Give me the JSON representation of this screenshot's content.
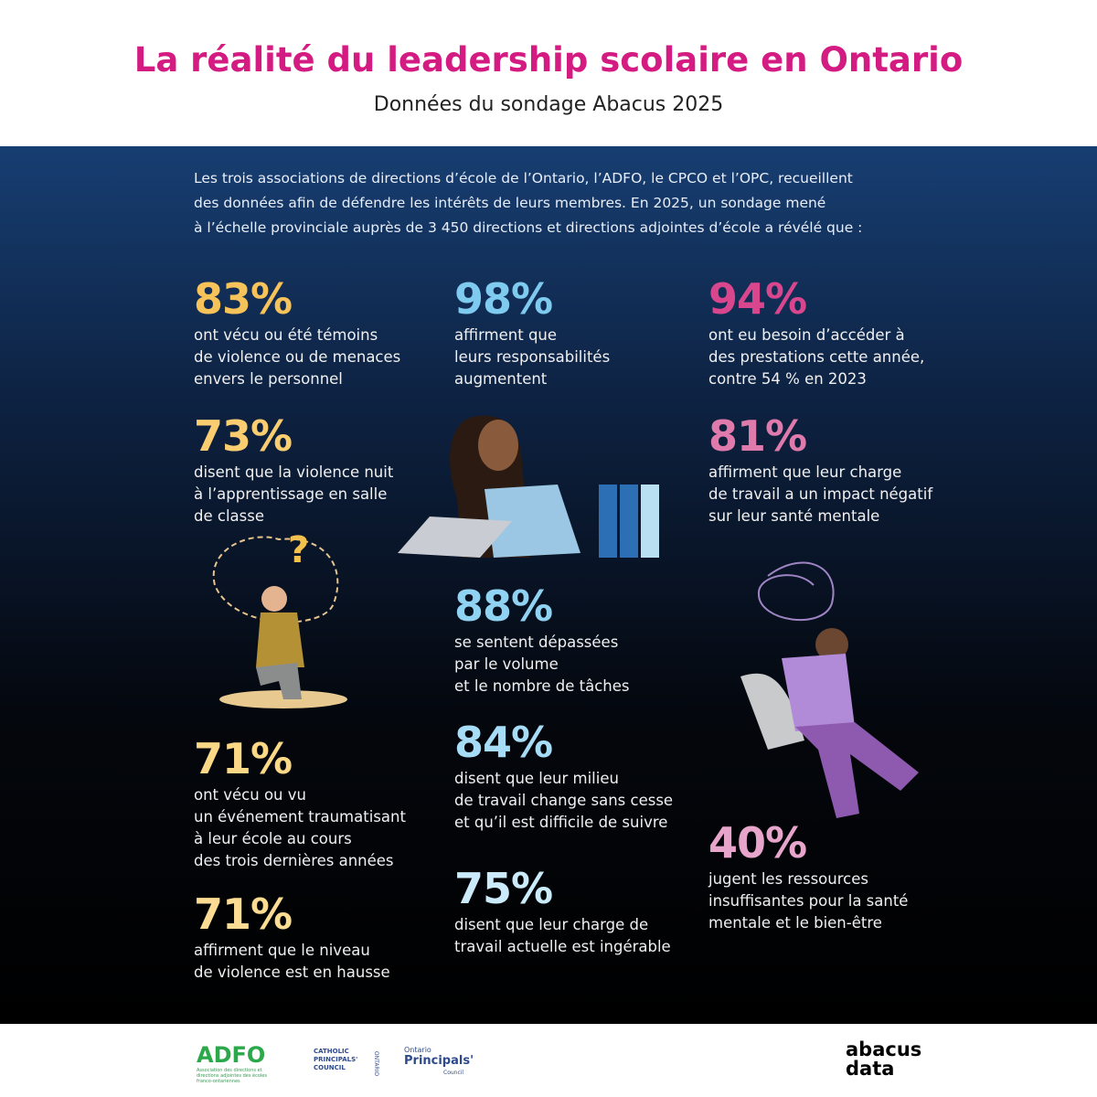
{
  "header": {
    "title": "La réalité du leadership scolaire en Ontario",
    "subtitle": "Données du sondage Abacus 2025"
  },
  "intro": [
    "Les trois associations de directions d’école de l’Ontario, l’ADFO, le CPCO et l’OPC, recueillent",
    "des données afin de défendre les intérêts de leurs membres. En 2025, un sondage mené",
    "à l’échelle provinciale auprès de 3 450 directions et directions adjointes d’école a révélé que :"
  ],
  "stats": [
    {
      "value": "83%",
      "color": "#f6c25a",
      "lines": [
        "ont vécu ou été témoins",
        "de violence ou de menaces",
        "envers le personnel"
      ]
    },
    {
      "value": "73%",
      "color": "#f9cd70",
      "lines": [
        "disent que la violence nuit",
        "à l’apprentissage en salle",
        "de classe"
      ]
    },
    {
      "value": "71%",
      "color": "#fad885",
      "lines": [
        "ont vécu ou vu",
        "un événement traumatisant",
        "à leur école au cours",
        "des trois dernières années"
      ]
    },
    {
      "value": "71%",
      "color": "#fbdc92",
      "lines": [
        "affirment que le niveau",
        "de violence est en hausse"
      ]
    },
    {
      "value": "98%",
      "color": "#7ecbef",
      "lines": [
        "affirment que",
        "leurs responsabilités",
        "augmentent"
      ]
    },
    {
      "value": "88%",
      "color": "#8fd2f2",
      "lines": [
        "se sentent dépassées",
        "par le volume",
        "et le nombre de tâches"
      ]
    },
    {
      "value": "84%",
      "color": "#a6dcf5",
      "lines": [
        "disent que leur milieu",
        "de travail change sans cesse",
        "et qu’il est difficile de suivre"
      ]
    },
    {
      "value": "75%",
      "color": "#cbebfa",
      "lines": [
        "disent que leur charge de",
        "travail actuelle est ingérable"
      ]
    },
    {
      "value": "94%",
      "color": "#d8478e",
      "lines": [
        "ont eu besoin d’accéder à",
        "des prestations cette année,",
        "contre 54 % en 2023"
      ]
    },
    {
      "value": "81%",
      "color": "#df7aad",
      "lines": [
        "affirment que leur charge",
        "de travail a un impact négatif",
        "sur leur santé mentale"
      ]
    },
    {
      "value": "40%",
      "color": "#e8a5cb",
      "lines": [
        "jugent les ressources",
        "insuffisantes pour la santé",
        "mentale et le bien-être"
      ]
    }
  ],
  "footer": {
    "adfo": "ADFO",
    "adfo_sub": "Association des directions et directions adjointes des écoles franco-ontariennes",
    "cpco": "CATHOLIC PRINCIPALS' COUNCIL",
    "cpco_side": "ONTARIO",
    "opc_top": "Ontario",
    "opc_main": "Principals'",
    "opc_sub": "Council",
    "abacus_1": "abacus",
    "abacus_2": "data"
  }
}
